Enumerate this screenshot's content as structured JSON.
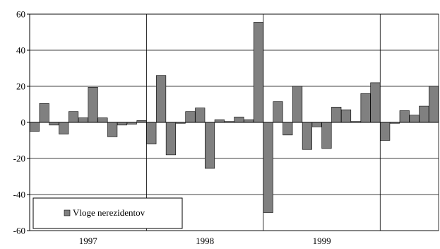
{
  "chart_data": {
    "type": "bar",
    "title": "",
    "xlabel": "",
    "ylabel": "",
    "ylim": [
      -60,
      60
    ],
    "yticks": [
      60,
      40,
      20,
      0,
      -20,
      -40,
      -60
    ],
    "grid": "horizontal and year separators",
    "legend": {
      "position": "bottom-left",
      "entries": [
        "Vloge nerezidentov"
      ]
    },
    "year_labels": [
      "1997",
      "1998",
      "1999"
    ],
    "colors": {
      "bar": "#808080",
      "bar_stroke": "#000000",
      "grid": "#000000"
    },
    "series": [
      {
        "name": "Vloge nerezidentov",
        "values": [
          -5,
          10.5,
          -1.5,
          -6.5,
          6,
          2.5,
          19.5,
          2.5,
          -8,
          -1.5,
          -1,
          1,
          -12,
          26,
          -18,
          -0.5,
          6,
          8,
          -25.5,
          1.5,
          0.5,
          3,
          1.5,
          55.5,
          -50,
          11.5,
          -7,
          20,
          -15,
          -2.5,
          -14.5,
          8.5,
          7,
          0.5,
          16,
          22,
          -10,
          -0.5,
          6.5,
          4,
          9,
          20
        ]
      }
    ]
  }
}
